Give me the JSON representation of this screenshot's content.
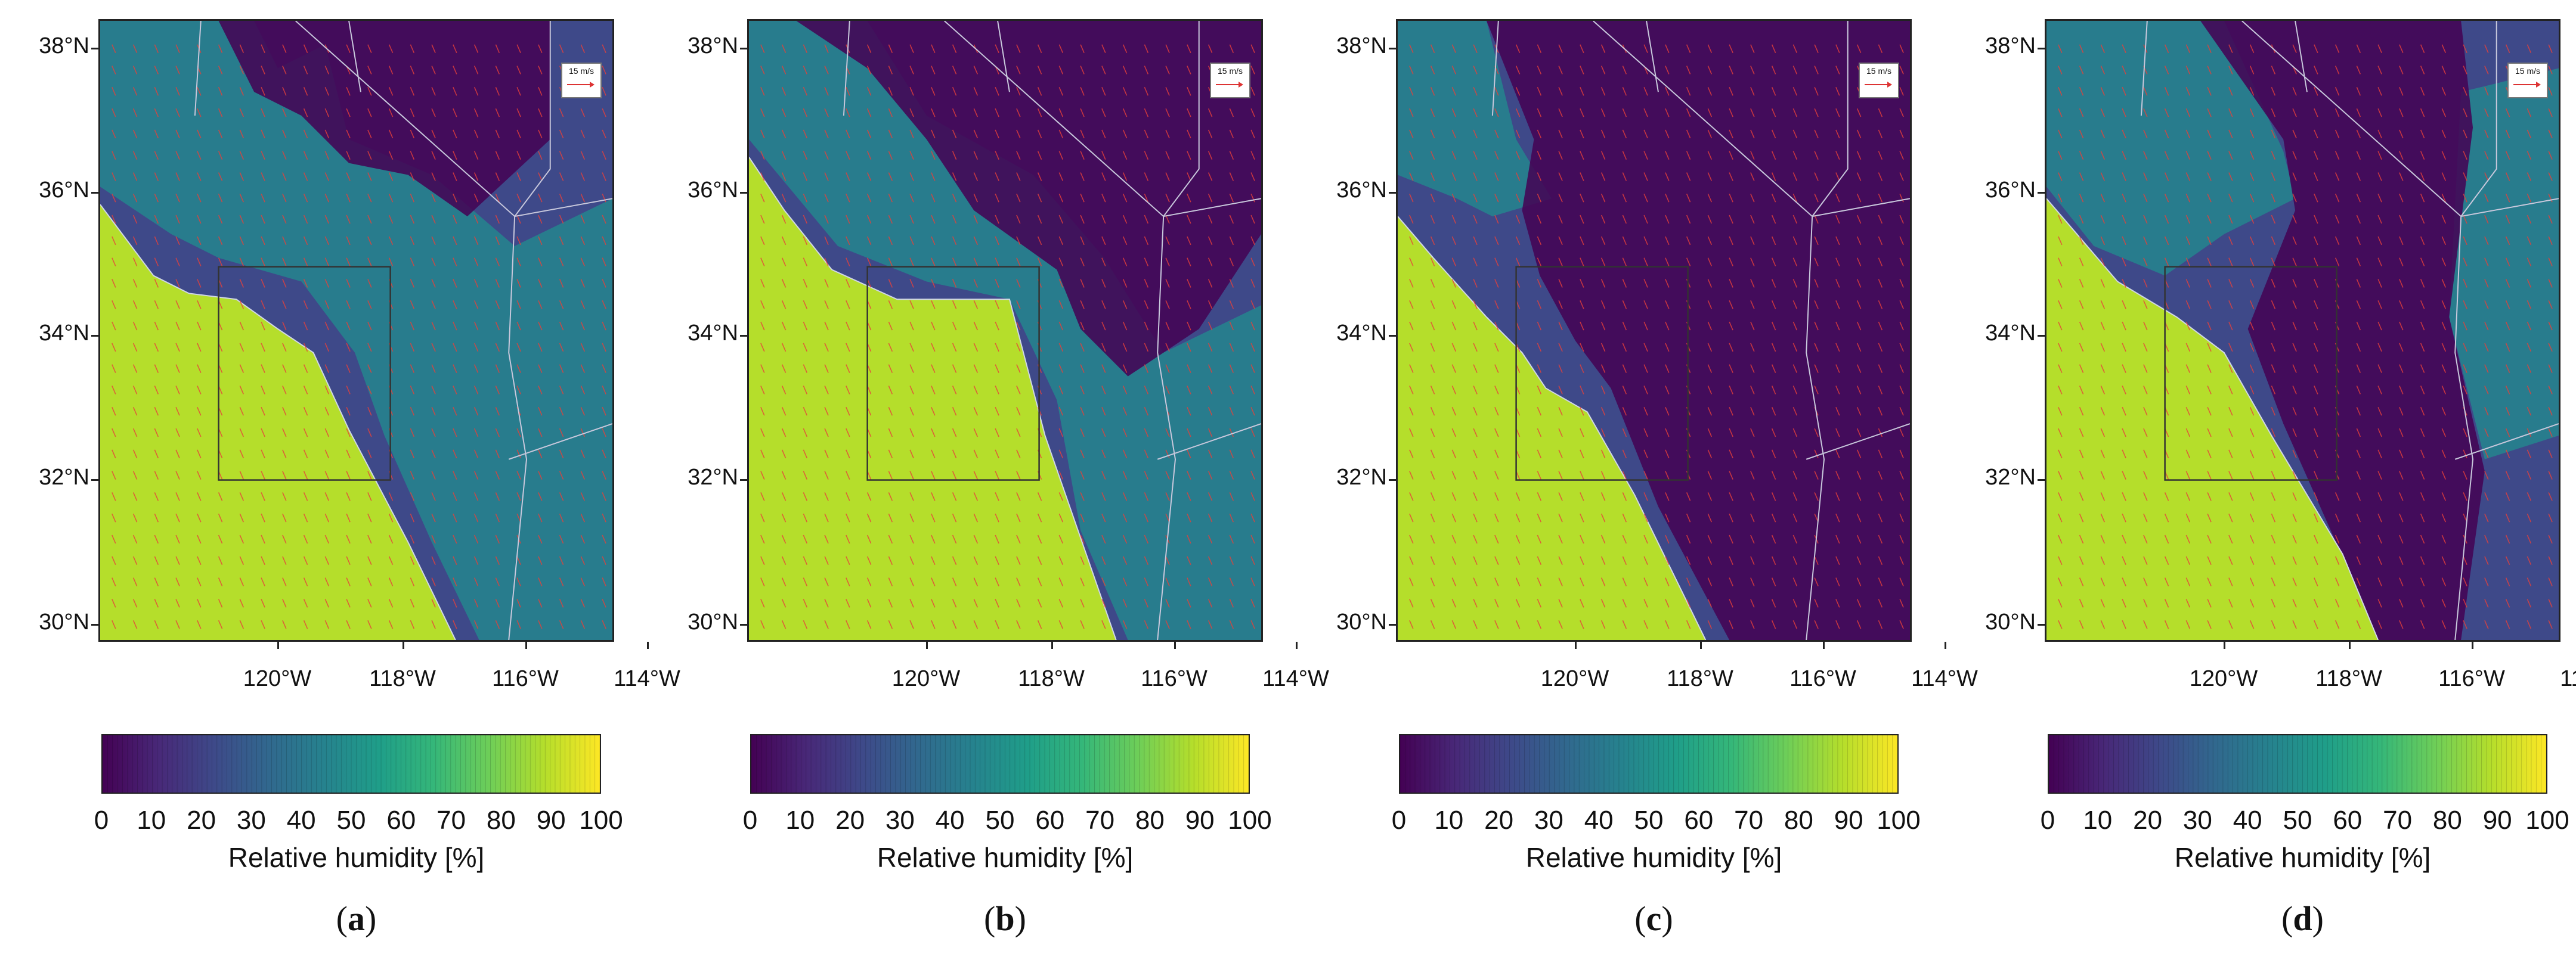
{
  "figure": {
    "lat_labels": [
      "38°N",
      "36°N",
      "34°N",
      "32°N",
      "30°N"
    ],
    "lon_labels": [
      "120°W",
      "118°W",
      "116°W",
      "114°W"
    ],
    "scale_label": "15 m/s",
    "colorbar": {
      "ticks": [
        "0",
        "10",
        "20",
        "30",
        "40",
        "50",
        "60",
        "70",
        "80",
        "90",
        "100"
      ],
      "title": "Relative humidity [%]",
      "colors": [
        "#440154",
        "#482878",
        "#3e4989",
        "#31688e",
        "#26828e",
        "#1f9e89",
        "#35b779",
        "#6ece58",
        "#b5de2b",
        "#fde725"
      ]
    },
    "wind_vector_color": "#e8403a",
    "panels": [
      {
        "label_open": "(",
        "label": "a",
        "label_close": ")",
        "regime": 0
      },
      {
        "label_open": "(",
        "label": "b",
        "label_close": ")",
        "regime": 1
      },
      {
        "label_open": "(",
        "label": "c",
        "label_close": ")",
        "regime": 2
      },
      {
        "label_open": "(",
        "label": "d",
        "label_close": ")",
        "regime": 3
      }
    ]
  }
}
